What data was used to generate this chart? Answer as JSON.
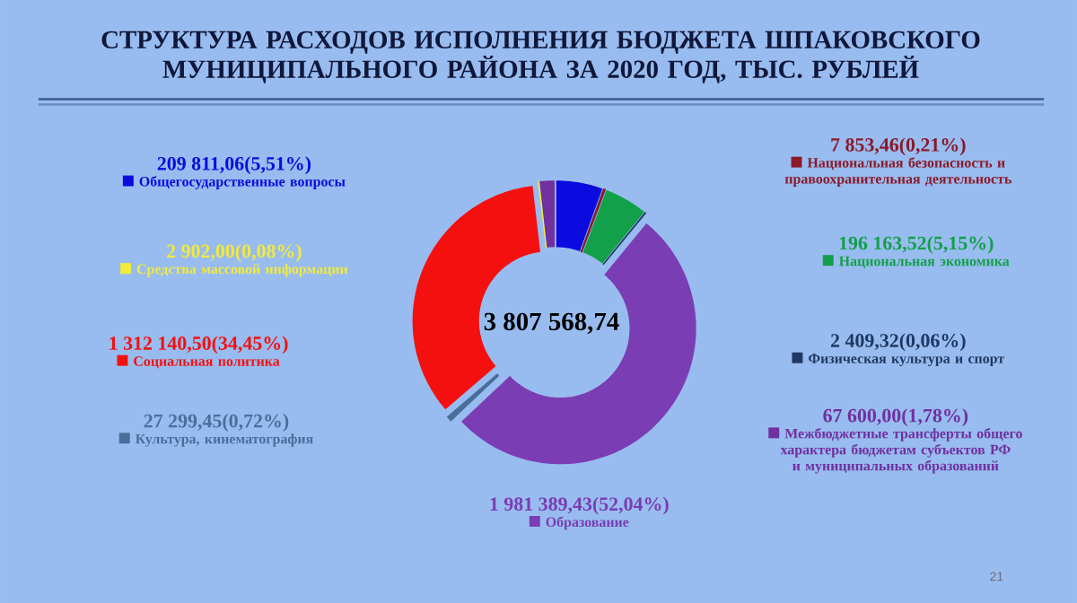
{
  "chart_data": {
    "type": "donut",
    "title": "СТРУКТУРА РАСХОДОВ ИСПОЛНЕНИЯ БЮДЖЕТА ШПАКОВСКОГО МУНИЦИПАЛЬНОГО РАЙОНА ЗА 2020 ГОД, ТЫС. РУБЛЕЙ",
    "categories": [
      "Общегосударственные вопросы",
      "Национальная безопасность и правоохранительная деятельность",
      "Национальная экономика",
      "Физическая культура и спорт",
      "Образование",
      "Культура, кинематография",
      "Социальная политика",
      "Средства массовой информации",
      "Межбюджетные трансферты общего характера бюджетам субъектов РФ и муниципальных образований"
    ],
    "values": [
      209811.06,
      7853.46,
      196163.52,
      2409.32,
      1981389.43,
      27299.45,
      1312140.5,
      2902.0,
      67600.0
    ],
    "value_labels": [
      "209 811,06(5,51%)",
      "7 853,46(0,21%)",
      "196 163,52(5,15%)",
      "2 409,32(0,06%)",
      "1 981 389,43(52,04%)",
      "27 299,45(0,72%)",
      "1 312 140,50(34,45%)",
      "2 902,00(0,08%)",
      "67 600,00(1,78%)"
    ],
    "colors": [
      "#0b0be0",
      "#8b1a2a",
      "#13a04a",
      "#1f3864",
      "#7a3db3",
      "#4a6e9a",
      "#f51010",
      "#f2ea3c",
      "#7030a0"
    ],
    "legend": "bottom right",
    "annotations": [
      "3 807 568,74",
      "21"
    ]
  }
}
